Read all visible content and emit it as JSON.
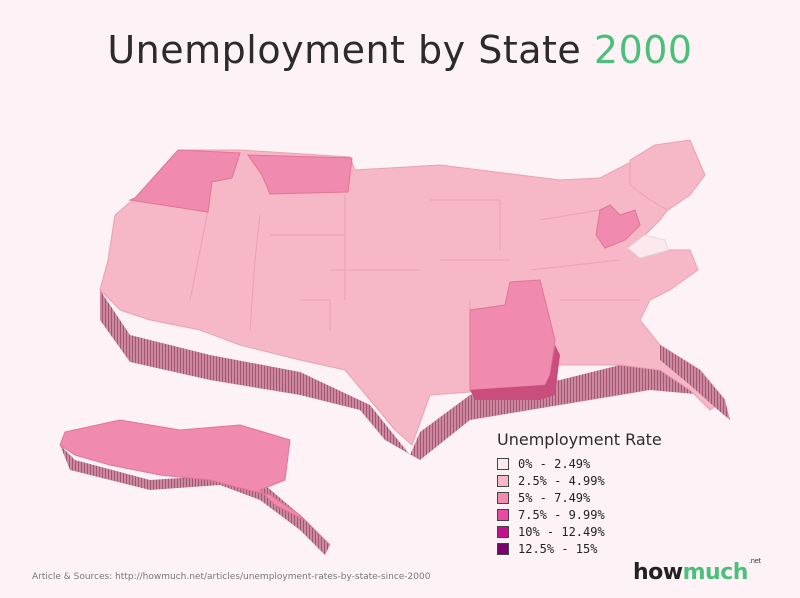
{
  "title": {
    "prefix": "Unemployment by State",
    "year": "2000"
  },
  "legend": {
    "title": "Unemployment Rate",
    "items": [
      {
        "label": "0% - 2.49%",
        "color": "#fbe9ee"
      },
      {
        "label": "2.5% - 4.99%",
        "color": "#f6b7c6"
      },
      {
        "label": "5% - 7.49%",
        "color": "#f08aae"
      },
      {
        "label": "7.5% - 9.99%",
        "color": "#ea4aa6"
      },
      {
        "label": "10% - 12.49%",
        "color": "#c5108c"
      },
      {
        "label": "12.5% - 15%",
        "color": "#7a0070"
      }
    ]
  },
  "map_data": {
    "region": "United States",
    "colors": {
      "base_states": "#f6b7c6",
      "highlight_states": "#f08aae",
      "lowest_state": "#fbe9ee",
      "extrusion": "#b86b85"
    },
    "highlighted_states": [
      "Oregon",
      "Montana",
      "Alaska",
      "Mississippi",
      "Alabama",
      "West Virginia"
    ],
    "lowest_state": "Virginia"
  },
  "footer": {
    "source": "Article & Sources: http://howmuch.net/articles/unemployment-rates-by-state-since-2000",
    "brand_part1": "how",
    "brand_part2": "much",
    "brand_suffix": ".net"
  }
}
